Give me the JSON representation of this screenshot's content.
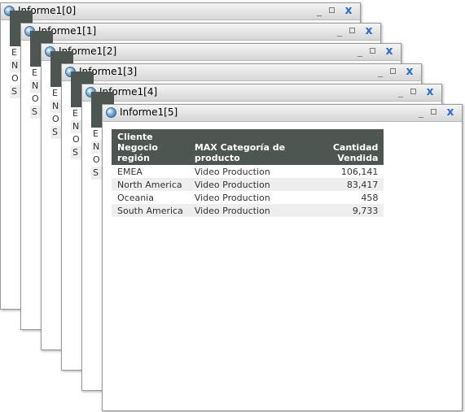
{
  "windows": [
    {
      "title": "Informe1[0]"
    },
    {
      "title": "Informe1[1]"
    },
    {
      "title": "Informe1[2]"
    },
    {
      "title": "Informe1[3]"
    },
    {
      "title": "Informe1[4]"
    },
    {
      "title": "Informe1[5]"
    }
  ],
  "controls": {
    "minimize": "_",
    "close": "x"
  },
  "stub_rows": [
    "E",
    "N",
    "O",
    "S"
  ],
  "report": {
    "columns": [
      {
        "lines": [
          "Cliente",
          "Negocio",
          "región"
        ]
      },
      {
        "lines": [
          "MAX Categoría de producto"
        ]
      },
      {
        "lines": [
          "Cantidad",
          "Vendida"
        ]
      }
    ],
    "rows": [
      {
        "region": "EMEA",
        "category": "Video Production",
        "qty": "106,141"
      },
      {
        "region": "North America",
        "category": "Video Production",
        "qty": "83,417"
      },
      {
        "region": "Oceania",
        "category": "Video Production",
        "qty": "458"
      },
      {
        "region": "South America",
        "category": "Video Production",
        "qty": "9,733"
      }
    ]
  }
}
